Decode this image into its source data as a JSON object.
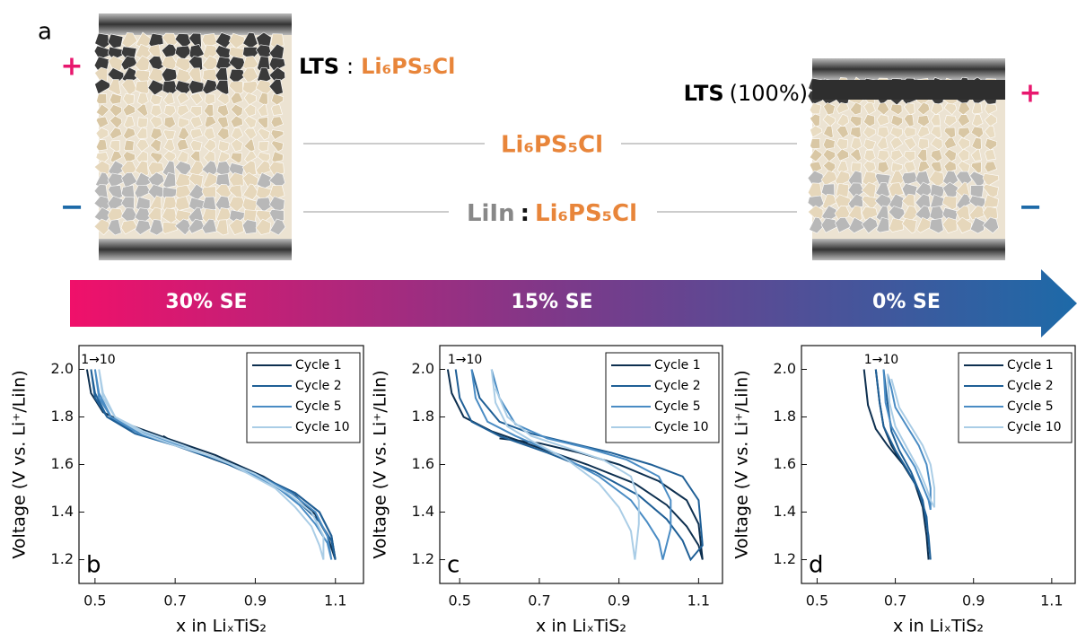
{
  "schematic": {
    "panel_label": "a",
    "left_plus": "+",
    "left_minus": "−",
    "right_plus": "+",
    "right_minus": "−",
    "left_top": {
      "bold": "LTS",
      "sep": ":",
      "electrolyte": "Li₆PS₅Cl"
    },
    "right_top": {
      "bold": "LTS",
      "note": "(100%)"
    },
    "middle": "Li₆PS₅Cl",
    "bottom": {
      "bold": "LiIn",
      "sep": ":",
      "electrolyte": "Li₆PS₅Cl"
    },
    "arrow_labels": [
      "30% SE",
      "15% SE",
      "0% SE"
    ]
  },
  "chart_data": [
    {
      "type": "line",
      "panel_label": "b",
      "annotation": "1→10",
      "x_label": "x in LiₓTiS₂",
      "y_label": "Voltage (V vs. Li⁺/LiIn)",
      "xlim": [
        0.46,
        1.17
      ],
      "ylim": [
        1.1,
        2.1
      ],
      "xticks": [
        0.5,
        0.7,
        0.9,
        1.1
      ],
      "yticks": [
        1.2,
        1.4,
        1.6,
        1.8,
        {
          "value": 2,
          "label": "2.0"
        }
      ],
      "legend": "upper right",
      "series": [
        {
          "name": "Cycle 1",
          "color": "#0d2f4f",
          "x": [
            0.48,
            0.49,
            0.52,
            0.58,
            0.68,
            0.8,
            0.92,
            1.0,
            1.05,
            1.08,
            1.1,
            1.09,
            1.06,
            1.0,
            0.9,
            0.8,
            0.72,
            0.67
          ],
          "values": [
            2.0,
            1.9,
            1.82,
            1.77,
            1.71,
            1.64,
            1.55,
            1.47,
            1.39,
            1.3,
            1.2,
            1.3,
            1.4,
            1.48,
            1.56,
            1.62,
            1.67,
            1.72
          ]
        },
        {
          "name": "Cycle 2",
          "color": "#1f5f96",
          "x": [
            0.49,
            0.5,
            0.53,
            0.6,
            0.7,
            0.82,
            0.94,
            1.01,
            1.06,
            1.09,
            1.1,
            1.09,
            1.06,
            1.0,
            0.9,
            0.8,
            0.7,
            0.6,
            0.53,
            0.5,
            0.49
          ],
          "values": [
            2.0,
            1.88,
            1.8,
            1.74,
            1.68,
            1.61,
            1.52,
            1.44,
            1.36,
            1.28,
            1.2,
            1.3,
            1.4,
            1.48,
            1.56,
            1.63,
            1.68,
            1.73,
            1.8,
            1.9,
            2.0
          ]
        },
        {
          "name": "Cycle 5",
          "color": "#4a8cc4",
          "x": [
            0.5,
            0.51,
            0.54,
            0.61,
            0.71,
            0.83,
            0.95,
            1.01,
            1.05,
            1.08,
            1.09,
            1.08,
            1.05,
            0.99,
            0.9,
            0.8,
            0.7,
            0.61,
            0.54,
            0.51,
            0.5
          ],
          "values": [
            2.0,
            1.88,
            1.8,
            1.74,
            1.68,
            1.61,
            1.51,
            1.43,
            1.35,
            1.27,
            1.2,
            1.3,
            1.4,
            1.48,
            1.56,
            1.63,
            1.68,
            1.73,
            1.8,
            1.9,
            2.0
          ]
        },
        {
          "name": "Cycle 10",
          "color": "#aacde6",
          "x": [
            0.51,
            0.52,
            0.55,
            0.62,
            0.72,
            0.84,
            0.95,
            1.0,
            1.04,
            1.06,
            1.07,
            1.07,
            1.04,
            0.98,
            0.9,
            0.8,
            0.7,
            0.62,
            0.55,
            0.52,
            0.51
          ],
          "values": [
            2.0,
            1.88,
            1.8,
            1.74,
            1.68,
            1.6,
            1.5,
            1.42,
            1.34,
            1.26,
            1.2,
            1.3,
            1.4,
            1.48,
            1.56,
            1.63,
            1.68,
            1.73,
            1.8,
            1.9,
            2.0
          ]
        }
      ]
    },
    {
      "type": "line",
      "panel_label": "c",
      "annotation": "1→10",
      "x_label": "x in LiₓTiS₂",
      "y_label": "Voltage (V vs. Li⁺/LiIn)",
      "xlim": [
        0.45,
        1.16
      ],
      "ylim": [
        1.1,
        2.1
      ],
      "xticks": [
        0.5,
        0.7,
        0.9,
        1.1
      ],
      "yticks": [
        1.2,
        1.4,
        1.6,
        1.8,
        {
          "value": 2,
          "label": "2.0"
        }
      ],
      "legend": "upper right",
      "series": [
        {
          "name": "Cycle 1",
          "color": "#0d2f4f",
          "x": [
            0.47,
            0.48,
            0.51,
            0.58,
            0.7,
            0.82,
            0.94,
            1.02,
            1.07,
            1.1,
            1.11,
            1.1,
            1.07,
            1.0,
            0.9,
            0.8,
            0.7,
            0.6
          ],
          "values": [
            2.0,
            1.9,
            1.8,
            1.74,
            1.67,
            1.6,
            1.52,
            1.43,
            1.34,
            1.26,
            1.2,
            1.35,
            1.45,
            1.53,
            1.6,
            1.65,
            1.69,
            1.71
          ]
        },
        {
          "name": "Cycle 2",
          "color": "#1f5f96",
          "x": [
            0.49,
            0.5,
            0.53,
            0.6,
            0.72,
            0.84,
            0.95,
            1.02,
            1.06,
            1.08,
            1.11,
            1.1,
            1.06,
            0.98,
            0.88,
            0.78,
            0.68,
            0.6,
            0.55,
            0.53
          ],
          "values": [
            2.0,
            1.88,
            1.78,
            1.72,
            1.65,
            1.57,
            1.47,
            1.37,
            1.28,
            1.2,
            1.26,
            1.45,
            1.55,
            1.6,
            1.65,
            1.69,
            1.73,
            1.78,
            1.88,
            2.0
          ]
        },
        {
          "name": "Cycle 5",
          "color": "#4a8cc4",
          "x": [
            0.53,
            0.54,
            0.57,
            0.64,
            0.75,
            0.85,
            0.93,
            0.97,
            1.0,
            1.01,
            1.03,
            1.03,
            1.0,
            0.92,
            0.82,
            0.72,
            0.64,
            0.6,
            0.58
          ],
          "values": [
            2.0,
            1.88,
            1.78,
            1.72,
            1.64,
            1.55,
            1.45,
            1.36,
            1.28,
            1.2,
            1.33,
            1.45,
            1.55,
            1.62,
            1.67,
            1.71,
            1.77,
            1.88,
            2.0
          ]
        },
        {
          "name": "Cycle 10",
          "color": "#aacde6",
          "x": [
            0.58,
            0.59,
            0.62,
            0.68,
            0.77,
            0.85,
            0.9,
            0.93,
            0.94,
            0.95,
            0.95,
            0.93,
            0.86,
            0.77,
            0.68,
            0.62,
            0.59
          ],
          "values": [
            2.0,
            1.86,
            1.76,
            1.7,
            1.62,
            1.52,
            1.42,
            1.32,
            1.2,
            1.35,
            1.45,
            1.55,
            1.62,
            1.67,
            1.72,
            1.8,
            1.92
          ]
        }
      ]
    },
    {
      "type": "line",
      "panel_label": "d",
      "annotation": "1→10",
      "x_label": "x in LiₓTiS₂",
      "y_label": "Voltage (V vs. Li⁺/LiIn)",
      "xlim": [
        0.46,
        1.16
      ],
      "ylim": [
        1.1,
        2.1
      ],
      "xticks": [
        0.5,
        0.7,
        0.9,
        1.1
      ],
      "yticks": [
        1.2,
        1.4,
        1.6,
        1.8,
        {
          "value": 2,
          "label": "2.0"
        }
      ],
      "legend": "upper right",
      "series": [
        {
          "name": "Cycle 1",
          "color": "#0d2f4f",
          "x": [
            0.62,
            0.63,
            0.65,
            0.68,
            0.72,
            0.75,
            0.77,
            0.78,
            0.785,
            0.78,
            0.77,
            0.75,
            0.72,
            0.69,
            0.67,
            0.66,
            0.65
          ],
          "values": [
            2.0,
            1.85,
            1.75,
            1.68,
            1.6,
            1.52,
            1.42,
            1.3,
            1.2,
            1.3,
            1.42,
            1.52,
            1.6,
            1.68,
            1.76,
            1.86,
            2.0
          ]
        },
        {
          "name": "Cycle 2",
          "color": "#1f5f96",
          "x": [
            0.65,
            0.66,
            0.67,
            0.7,
            0.73,
            0.76,
            0.78,
            0.785,
            0.79,
            0.785,
            0.77,
            0.74,
            0.71,
            0.69,
            0.68,
            0.67
          ],
          "values": [
            2.0,
            1.86,
            1.76,
            1.66,
            1.58,
            1.49,
            1.38,
            1.28,
            1.2,
            1.3,
            1.45,
            1.57,
            1.66,
            1.74,
            1.86,
            2.0
          ]
        },
        {
          "name": "Cycle 5",
          "color": "#4a8cc4",
          "x": [
            0.67,
            0.675,
            0.69,
            0.72,
            0.75,
            0.77,
            0.785,
            0.79,
            0.79,
            0.78,
            0.76,
            0.73,
            0.7,
            0.69,
            0.68
          ],
          "values": [
            2.0,
            1.86,
            1.76,
            1.67,
            1.59,
            1.51,
            1.45,
            1.41,
            1.5,
            1.6,
            1.68,
            1.76,
            1.84,
            1.92,
            1.98
          ]
        },
        {
          "name": "Cycle 10",
          "color": "#aacde6",
          "x": [
            0.68,
            0.685,
            0.7,
            0.73,
            0.76,
            0.78,
            0.79,
            0.8,
            0.8,
            0.79,
            0.77,
            0.74,
            0.71,
            0.7,
            0.69
          ],
          "values": [
            1.98,
            1.86,
            1.76,
            1.67,
            1.58,
            1.5,
            1.45,
            1.42,
            1.5,
            1.6,
            1.68,
            1.76,
            1.84,
            1.9,
            1.96
          ]
        }
      ]
    }
  ]
}
